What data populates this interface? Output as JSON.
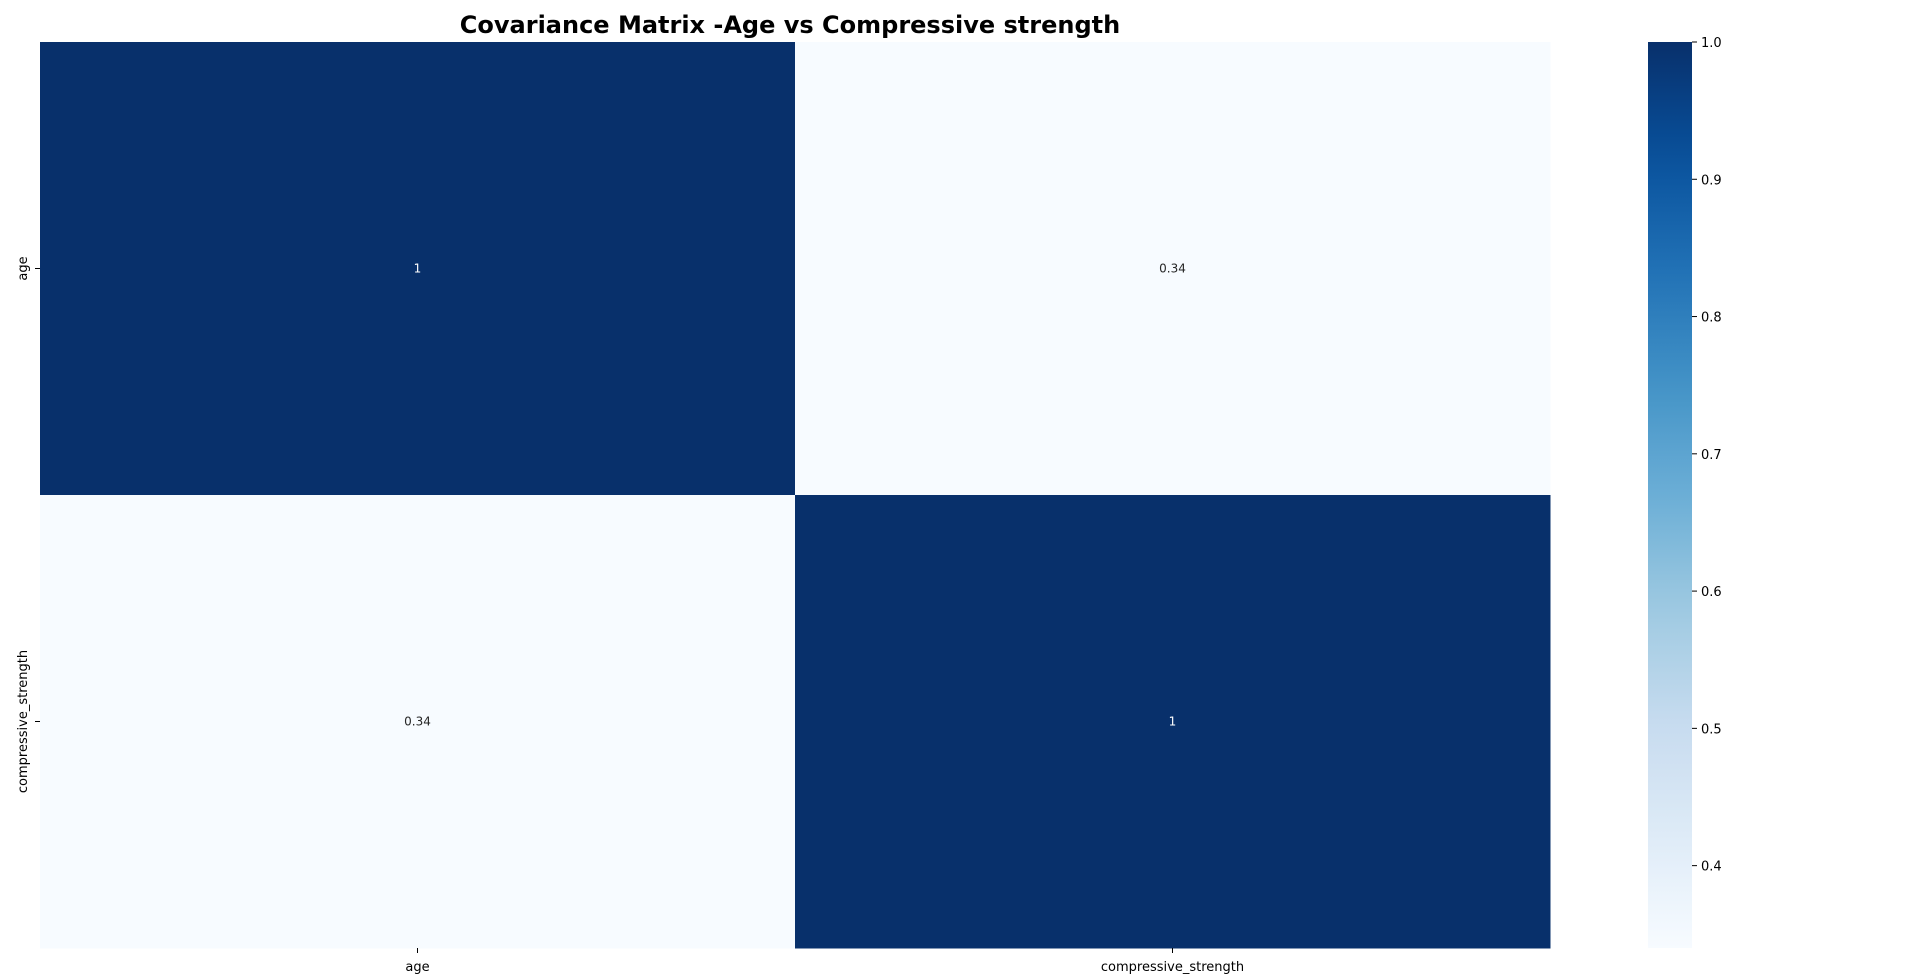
{
  "chart_data": {
    "type": "heatmap",
    "title": "Covariance Matrix -Age vs Compressive strength",
    "x_categories": [
      "age",
      "compressive_strength"
    ],
    "y_categories": [
      "age",
      "compressive_strength"
    ],
    "values": [
      [
        1.0,
        0.34
      ],
      [
        0.34,
        1.0
      ]
    ],
    "annotations": [
      [
        "1",
        "0.34"
      ],
      [
        "0.34",
        "1"
      ]
    ],
    "colormap": "Blues",
    "colorbar": {
      "range": [
        0.34,
        1.0
      ],
      "ticks": [
        0.4,
        0.5,
        0.6,
        0.7,
        0.8,
        0.9,
        1.0
      ],
      "tick_labels": [
        "0.4",
        "0.5",
        "0.6",
        "0.7",
        "0.8",
        "0.9",
        "1.0"
      ],
      "position": "right"
    },
    "colors": {
      "high": "#08306b",
      "low": "#f7fbff"
    },
    "xlabel": "",
    "ylabel": ""
  }
}
